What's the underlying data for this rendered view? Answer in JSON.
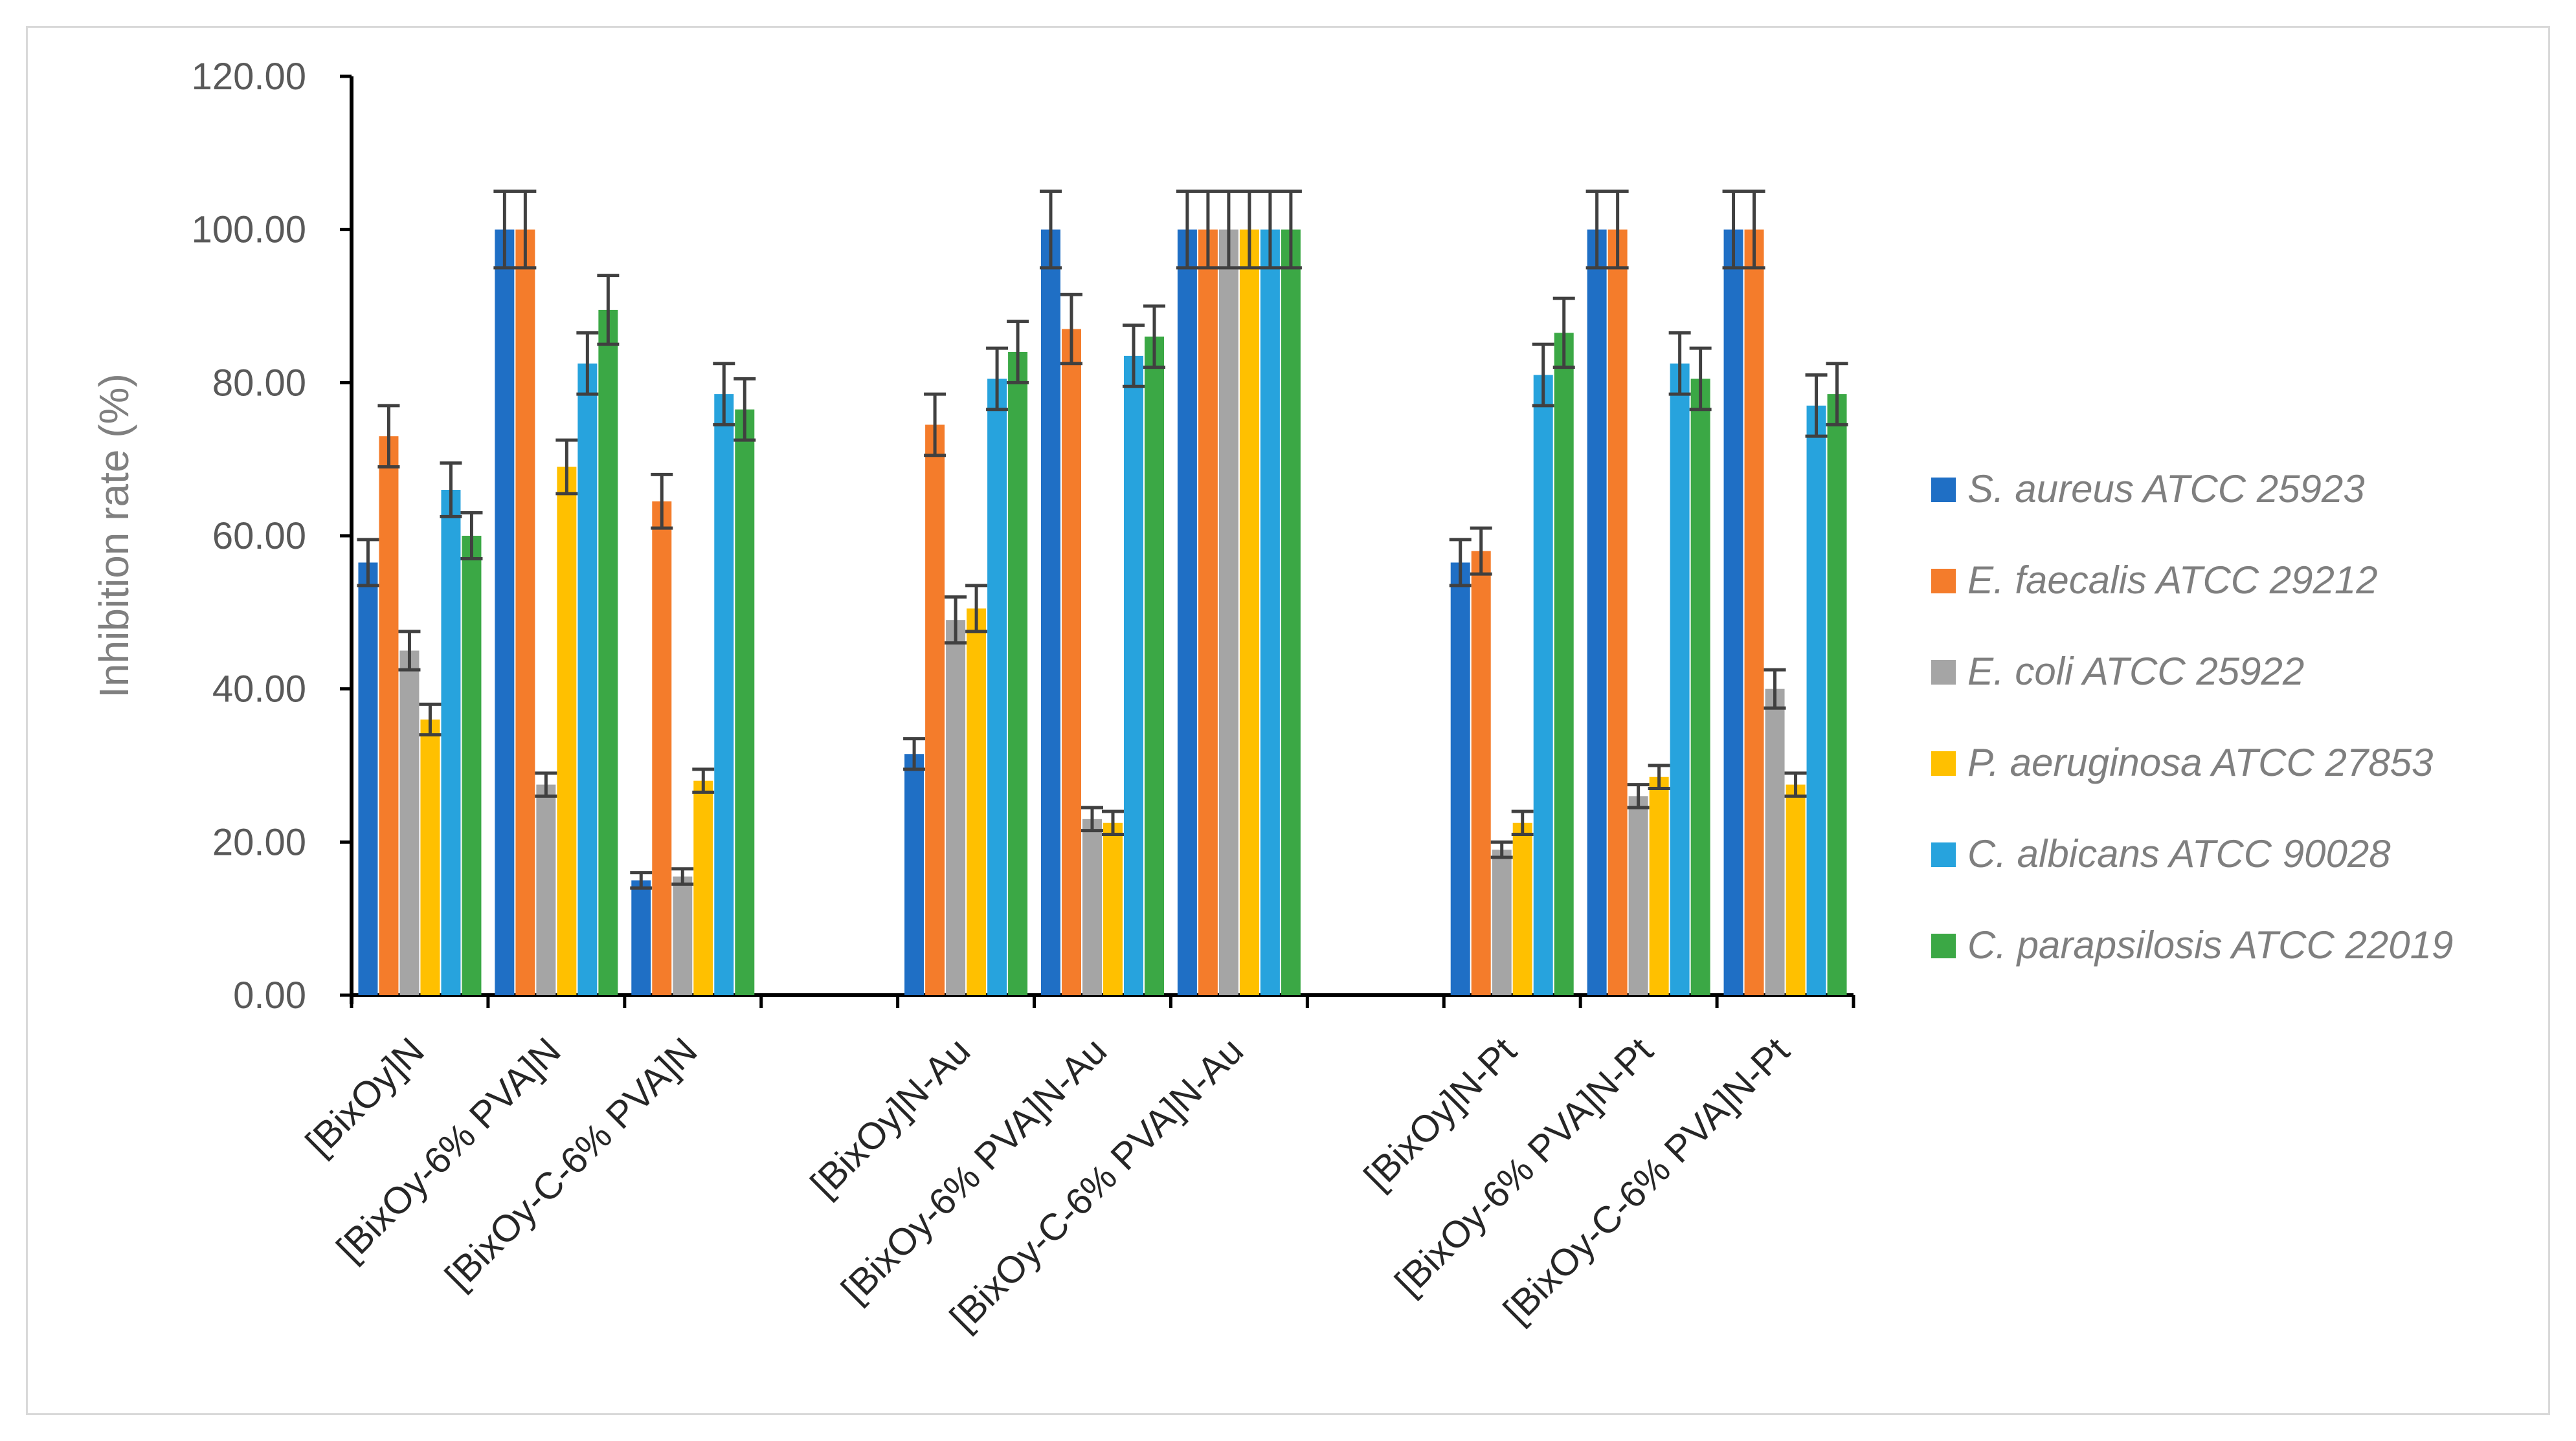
{
  "chart_data": {
    "type": "bar",
    "title": "",
    "xlabel": "",
    "ylabel": "Inhibition rate (%)",
    "ylim": [
      0,
      120
    ],
    "yticks": [
      "0.00",
      "20.00",
      "40.00",
      "60.00",
      "80.00",
      "100.00",
      "120.00"
    ],
    "grid": false,
    "legend_position": "right",
    "categories": [
      "[BixOy]N",
      "[BixOy-6% PVA]N",
      "[BixOy-C-6% PVA]N",
      "",
      "[BixOy]N-Au",
      "[BixOy-6% PVA]N-Au",
      "[BixOy-C-6% PVA]N-Au",
      "",
      "[BixOy]N-Pt",
      "[BixOy-6% PVA]N-Pt",
      "[BixOy-C-6% PVA]N-Pt"
    ],
    "series": [
      {
        "name": "S. aureus  ATCC 25923",
        "color": "#1f6fc5",
        "values": [
          56.5,
          100,
          15,
          null,
          31.5,
          100,
          100,
          null,
          56.5,
          100,
          100
        ],
        "errors": [
          3,
          5,
          1,
          null,
          2,
          5,
          5,
          null,
          3,
          5,
          5
        ]
      },
      {
        "name": "E. faecalis ATCC 29212",
        "color": "#f47c2b",
        "values": [
          73,
          100,
          64.5,
          null,
          74.5,
          87,
          100,
          null,
          58,
          100,
          100
        ],
        "errors": [
          4,
          5,
          3.5,
          null,
          4,
          4.5,
          5,
          null,
          3,
          5,
          5
        ]
      },
      {
        "name": "E. coli ATCC 25922",
        "color": "#a5a5a5",
        "values": [
          45,
          27.5,
          15.5,
          null,
          49,
          23,
          100,
          null,
          19,
          26,
          40
        ],
        "errors": [
          2.5,
          1.5,
          1,
          null,
          3,
          1.5,
          5,
          null,
          1,
          1.5,
          2.5
        ]
      },
      {
        "name": "P. aeruginosa  ATCC 27853",
        "color": "#ffc000",
        "values": [
          36,
          69,
          28,
          null,
          50.5,
          22.5,
          100,
          null,
          22.5,
          28.5,
          27.5
        ],
        "errors": [
          2,
          3.5,
          1.5,
          null,
          3,
          1.5,
          5,
          null,
          1.5,
          1.5,
          1.5
        ]
      },
      {
        "name": "C. albicans ATCC 90028",
        "color": "#27a3dd",
        "values": [
          66,
          82.5,
          78.5,
          null,
          80.5,
          83.5,
          100,
          null,
          81,
          82.5,
          77
        ],
        "errors": [
          3.5,
          4,
          4,
          null,
          4,
          4,
          5,
          null,
          4,
          4,
          4
        ]
      },
      {
        "name": "C. parapsilosis ATCC 22019",
        "color": "#3ba845",
        "values": [
          60,
          89.5,
          76.5,
          null,
          84,
          86,
          100,
          null,
          86.5,
          80.5,
          78.5
        ],
        "errors": [
          3,
          4.5,
          4,
          null,
          4,
          4,
          5,
          null,
          4.5,
          4,
          4
        ]
      }
    ]
  }
}
